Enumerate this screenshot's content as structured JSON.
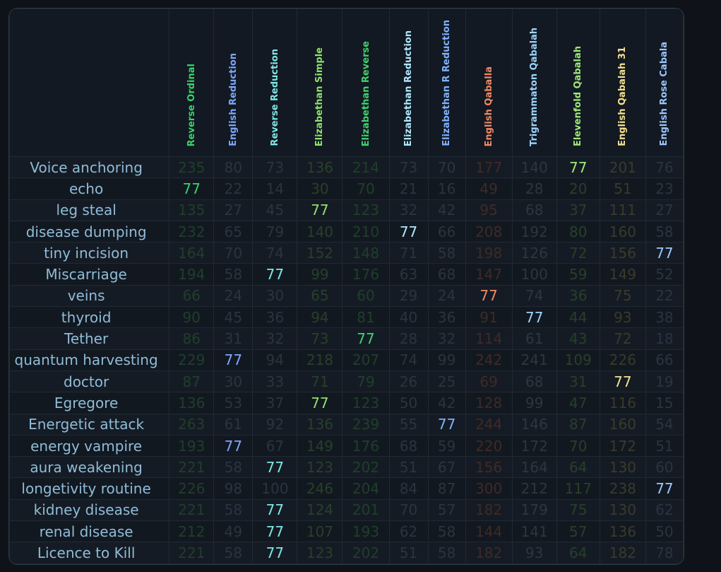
{
  "target": "77",
  "columns": [
    {
      "label": "Reverse Ordinal",
      "color": "#36d46a",
      "dim": "#1f3f2b"
    },
    {
      "label": "English Reduction",
      "color": "#7fa6ff",
      "dim": "#2a3440"
    },
    {
      "label": "Reverse Reduction",
      "color": "#7ee6e6",
      "dim": "#2a3440"
    },
    {
      "label": "Elizabethan Simple",
      "color": "#8fe26b",
      "dim": "#27402a"
    },
    {
      "label": "Elizabethan Reverse",
      "color": "#3fd46e",
      "dim": "#1f3f2b"
    },
    {
      "label": "Elizabethan Reduction",
      "color": "#aee8ff",
      "dim": "#2a3440"
    },
    {
      "label": "Elizabethan R Reduction",
      "color": "#7fb2ff",
      "dim": "#2a3440"
    },
    {
      "label": "English Qaballa",
      "color": "#ef8a65",
      "dim": "#3f2a26"
    },
    {
      "label": "Trigrammaton Qabalah",
      "color": "#9dd4ff",
      "dim": "#2d3640"
    },
    {
      "label": "Elevenfold Qabalah",
      "color": "#9fe87a",
      "dim": "#27402a"
    },
    {
      "label": "English Qabalah 31",
      "color": "#f3e090",
      "dim": "#3a3a2b"
    },
    {
      "label": "English Rose Cabala",
      "color": "#9cc7ff",
      "dim": "#2a3440"
    }
  ],
  "rows": [
    {
      "label": "Voice anchoring",
      "values": [
        "235",
        "80",
        "73",
        "136",
        "214",
        "73",
        "70",
        "177",
        "140",
        "77",
        "201",
        "76"
      ]
    },
    {
      "label": "echo",
      "values": [
        "77",
        "22",
        "14",
        "30",
        "70",
        "21",
        "16",
        "49",
        "28",
        "20",
        "51",
        "23"
      ]
    },
    {
      "label": "leg steal",
      "values": [
        "135",
        "27",
        "45",
        "77",
        "123",
        "32",
        "42",
        "95",
        "68",
        "37",
        "111",
        "27"
      ]
    },
    {
      "label": "disease dumping",
      "values": [
        "232",
        "65",
        "79",
        "140",
        "210",
        "77",
        "66",
        "208",
        "192",
        "80",
        "160",
        "58"
      ]
    },
    {
      "label": "tiny incision",
      "values": [
        "164",
        "70",
        "74",
        "152",
        "148",
        "71",
        "58",
        "198",
        "126",
        "72",
        "156",
        "77"
      ]
    },
    {
      "label": "Miscarriage",
      "values": [
        "194",
        "58",
        "77",
        "99",
        "176",
        "63",
        "68",
        "147",
        "100",
        "59",
        "149",
        "52"
      ]
    },
    {
      "label": "veins",
      "values": [
        "66",
        "24",
        "30",
        "65",
        "60",
        "29",
        "24",
        "77",
        "74",
        "36",
        "75",
        "22"
      ]
    },
    {
      "label": "thyroid",
      "values": [
        "90",
        "45",
        "36",
        "94",
        "81",
        "40",
        "36",
        "91",
        "77",
        "44",
        "93",
        "38"
      ]
    },
    {
      "label": "Tether",
      "values": [
        "86",
        "31",
        "32",
        "73",
        "77",
        "28",
        "32",
        "114",
        "61",
        "43",
        "72",
        "18"
      ]
    },
    {
      "label": "quantum harvesting",
      "values": [
        "229",
        "77",
        "94",
        "218",
        "207",
        "74",
        "99",
        "242",
        "241",
        "109",
        "226",
        "66"
      ]
    },
    {
      "label": "doctor",
      "values": [
        "87",
        "30",
        "33",
        "71",
        "79",
        "26",
        "25",
        "69",
        "68",
        "31",
        "77",
        "19"
      ]
    },
    {
      "label": "Egregore",
      "values": [
        "136",
        "53",
        "37",
        "77",
        "123",
        "50",
        "42",
        "128",
        "99",
        "47",
        "116",
        "15"
      ]
    },
    {
      "label": "Energetic attack",
      "values": [
        "263",
        "61",
        "92",
        "136",
        "239",
        "55",
        "77",
        "244",
        "146",
        "87",
        "160",
        "54"
      ]
    },
    {
      "label": "energy vampire",
      "values": [
        "193",
        "77",
        "67",
        "149",
        "176",
        "68",
        "59",
        "220",
        "172",
        "70",
        "172",
        "51"
      ]
    },
    {
      "label": "aura weakening",
      "values": [
        "221",
        "58",
        "77",
        "123",
        "202",
        "51",
        "67",
        "156",
        "164",
        "64",
        "130",
        "60"
      ]
    },
    {
      "label": "longetivity routine",
      "values": [
        "226",
        "98",
        "100",
        "246",
        "204",
        "84",
        "87",
        "300",
        "212",
        "117",
        "238",
        "77"
      ]
    },
    {
      "label": "kidney disease",
      "values": [
        "221",
        "58",
        "77",
        "124",
        "201",
        "70",
        "57",
        "182",
        "179",
        "75",
        "130",
        "62"
      ]
    },
    {
      "label": "renal disease",
      "values": [
        "212",
        "49",
        "77",
        "107",
        "193",
        "62",
        "58",
        "144",
        "141",
        "57",
        "136",
        "50"
      ]
    },
    {
      "label": "Licence to Kill",
      "values": [
        "221",
        "58",
        "77",
        "123",
        "202",
        "51",
        "58",
        "182",
        "93",
        "64",
        "182",
        "78"
      ]
    }
  ]
}
